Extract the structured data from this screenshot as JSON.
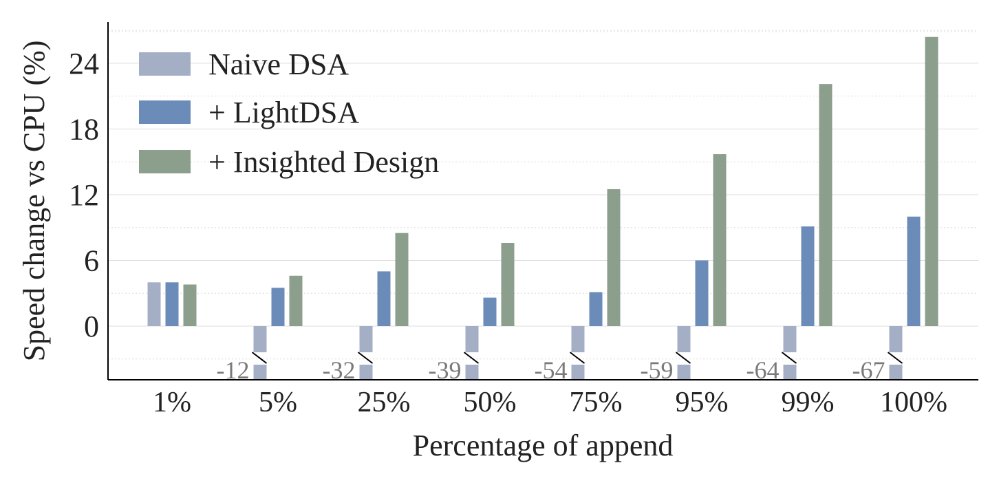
{
  "chart_data": {
    "type": "bar",
    "xlabel": "Percentage of append",
    "ylabel": "Speed change vs CPU (%)",
    "ylim": [
      -3.3,
      27.5
    ],
    "yticks": [
      0,
      6,
      12,
      18,
      24
    ],
    "grid": true,
    "legend_position": "top-left",
    "axis_break_below_zero": true,
    "categories": [
      "1%",
      "5%",
      "25%",
      "50%",
      "75%",
      "95%",
      "99%",
      "100%"
    ],
    "series": [
      {
        "name": "Naive DSA",
        "color": "#a4afc6",
        "values": [
          4.0,
          -12,
          -32,
          -39,
          -54,
          -59,
          -64,
          -67
        ],
        "value_labels": [
          "",
          "-12",
          "-32",
          "-39",
          "-54",
          "-59",
          "-64",
          "-67"
        ]
      },
      {
        "name": "+ LightDSA",
        "color": "#6b8bb8",
        "values": [
          4.0,
          3.5,
          5.0,
          2.6,
          3.1,
          6.0,
          9.1,
          10.0
        ]
      },
      {
        "name": "+ Insighted Design",
        "color": "#8c9e8c",
        "values": [
          3.8,
          4.6,
          8.5,
          7.6,
          12.5,
          15.7,
          22.1,
          26.4
        ]
      }
    ]
  }
}
